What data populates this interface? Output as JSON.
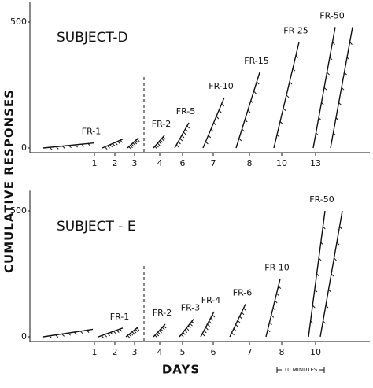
{
  "y_axis_label": "CUMULATIVE RESPONSES",
  "x_axis_label": "DAYS",
  "scale_note": "10 MINUTES",
  "chart_data": [
    {
      "type": "line",
      "title": "SUBJECT-D",
      "categories": [
        "1",
        "2",
        "3",
        "4",
        "6",
        "7",
        "8",
        "10",
        "13"
      ],
      "values": [
        20,
        35,
        40,
        50,
        100,
        200,
        300,
        420,
        480
      ],
      "annotations": [
        "FR-1",
        null,
        null,
        "FR-2",
        "FR-5",
        "FR-10",
        "FR-15",
        "FR-25",
        "FR-50"
      ],
      "ylim": [
        0,
        580
      ],
      "yticks": [
        0,
        500
      ],
      "color": "#111"
    },
    {
      "type": "line",
      "title": "SUBJECT - E",
      "categories": [
        "1",
        "2",
        "3",
        "4",
        "5",
        "6",
        "7",
        "8",
        "10"
      ],
      "values": [
        30,
        35,
        40,
        50,
        70,
        100,
        130,
        230,
        500
      ],
      "annotations": [
        null,
        "FR-1",
        null,
        "FR-2",
        "FR-3",
        "FR-4",
        "FR-6",
        "FR-10",
        "FR-50"
      ],
      "ylim": [
        0,
        580
      ],
      "yticks": [
        0,
        500
      ],
      "color": "#111"
    }
  ]
}
